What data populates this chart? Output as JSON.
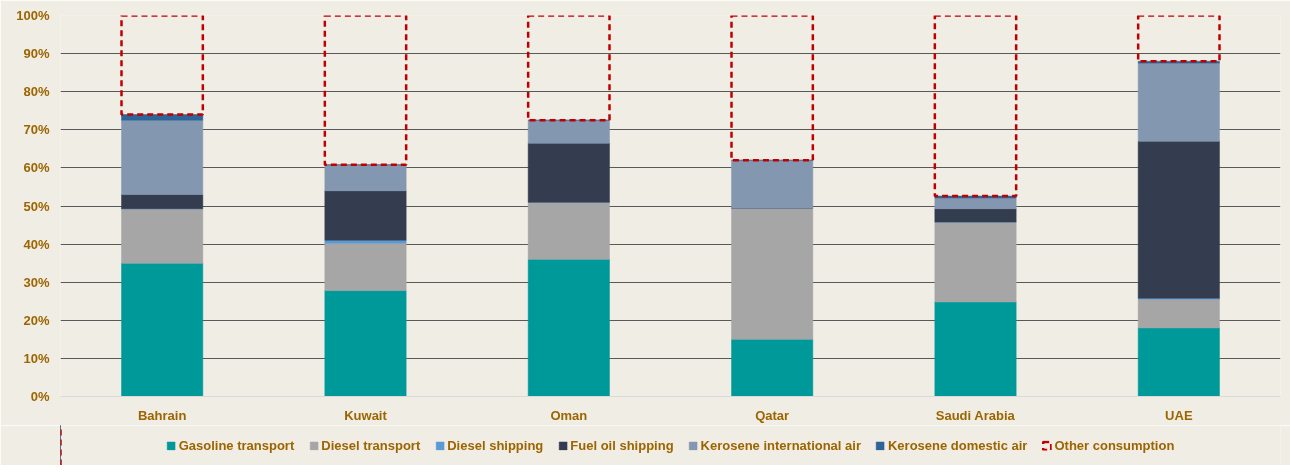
{
  "chart_data": {
    "type": "bar",
    "stacked": true,
    "categories": [
      "Bahrain",
      "Kuwait",
      "Oman",
      "Qatar",
      "Saudi Arabia",
      "UAE"
    ],
    "series": [
      {
        "name": "Gasoline transport",
        "color": "#009999",
        "values": [
          35,
          27.8,
          36,
          15,
          24.8,
          18
        ]
      },
      {
        "name": "Diesel transport",
        "color": "#a6a6a6",
        "values": [
          14.3,
          12.4,
          15,
          34.5,
          21,
          7.5
        ]
      },
      {
        "name": "Diesel shipping",
        "color": "#5b9bd5",
        "values": [
          0,
          0.8,
          0,
          0,
          0,
          0.3
        ]
      },
      {
        "name": "Fuel oil shipping",
        "color": "#333d4f",
        "values": [
          3.7,
          13,
          15.5,
          0,
          3.5,
          41.2
        ]
      },
      {
        "name": "Kerosene international air",
        "color": "#8497b0",
        "values": [
          19.5,
          6.8,
          6,
          12.5,
          2.8,
          20.5
        ]
      },
      {
        "name": "Kerosene domestic air",
        "color": "#2e6599",
        "values": [
          1.5,
          0,
          0,
          0,
          0.5,
          0.5
        ]
      },
      {
        "name": "Other consumption",
        "color": "#c00000",
        "line_style": "dashed",
        "values": [
          26,
          39.2,
          27.5,
          38,
          47.4,
          12
        ]
      }
    ],
    "ylim": [
      0,
      100
    ],
    "yticks": [
      {
        "value": 0,
        "label": "0%"
      },
      {
        "value": 10,
        "label": "10%"
      },
      {
        "value": 20,
        "label": "20%"
      },
      {
        "value": 30,
        "label": "30%"
      },
      {
        "value": 40,
        "label": "40%"
      },
      {
        "value": 50,
        "label": "50%"
      },
      {
        "value": 60,
        "label": "60%"
      },
      {
        "value": 70,
        "label": "70%"
      },
      {
        "value": 80,
        "label": "80%"
      },
      {
        "value": 90,
        "label": "90%"
      },
      {
        "value": 100,
        "label": "100%"
      }
    ],
    "grid": "y",
    "legend": "bottom"
  }
}
